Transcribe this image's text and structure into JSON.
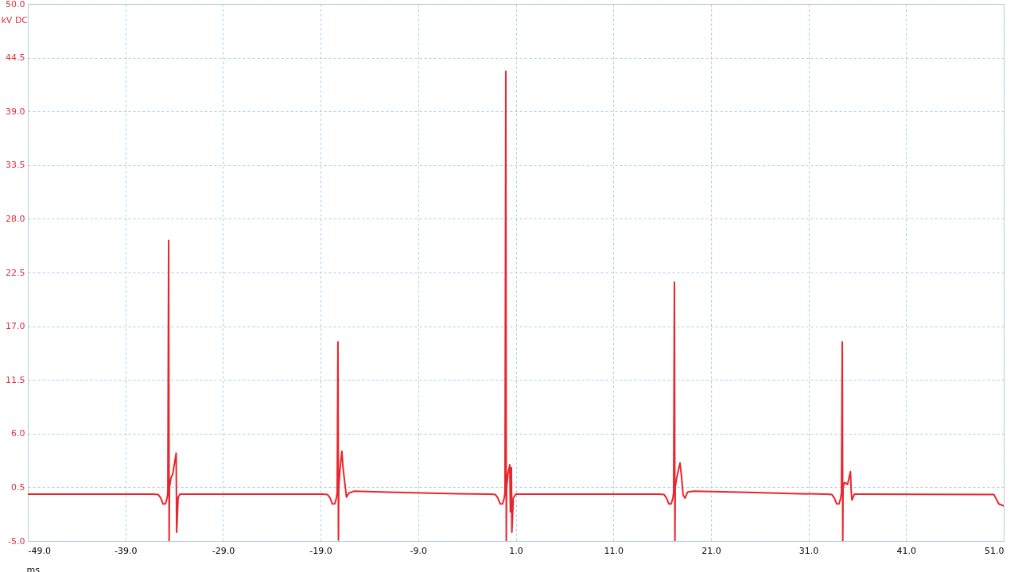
{
  "chart_data": {
    "type": "line",
    "xlabel": "ms",
    "ylabel": "kV DC",
    "grid": true,
    "line_style": "solid",
    "marker": "none",
    "xlim": [
      -49,
      51
    ],
    "ylim": [
      -5,
      50
    ],
    "xticks": [
      {
        "value": -49,
        "label": "-49.0"
      },
      {
        "value": -39,
        "label": "-39.0"
      },
      {
        "value": -29,
        "label": "-29.0"
      },
      {
        "value": -19,
        "label": "-19.0"
      },
      {
        "value": -9,
        "label": "-9.0"
      },
      {
        "value": 1,
        "label": "1.0"
      },
      {
        "value": 11,
        "label": "11.0"
      },
      {
        "value": 21,
        "label": "21.0"
      },
      {
        "value": 31,
        "label": "31.0"
      },
      {
        "value": 41,
        "label": "41.0"
      },
      {
        "value": 51,
        "label": "51.0"
      }
    ],
    "yticks": [
      {
        "value": -5,
        "label": "-5.0"
      },
      0.5,
      {
        "value": 6,
        "label": "6.0"
      },
      11.5,
      {
        "value": 17,
        "label": "17.0"
      },
      22.5,
      {
        "value": 28,
        "label": "28.0"
      },
      33.5,
      {
        "value": 39,
        "label": "39.0"
      },
      44.5,
      {
        "value": 50,
        "label": "50.0"
      }
    ],
    "x": [
      -49.0,
      -36.2,
      -35.63,
      -35.38,
      -35.14,
      -34.9,
      -34.73,
      -34.65,
      -34.57,
      -34.52,
      -34.49,
      -34.33,
      -34.16,
      -33.8,
      -33.75,
      -33.6,
      -33.4,
      -32.9,
      -18.85,
      -18.28,
      -18.03,
      -17.79,
      -17.55,
      -17.38,
      -17.3,
      -17.22,
      -17.17,
      -17.14,
      -17.0,
      -16.82,
      -16.7,
      -16.5,
      -16.35,
      -16.1,
      -15.6,
      -12.0,
      -5.0,
      -1.6,
      -1.08,
      -0.83,
      -0.59,
      -0.35,
      -0.18,
      -0.1,
      -0.02,
      0.03,
      0.06,
      0.22,
      0.39,
      0.45,
      0.55,
      0.6,
      0.75,
      1.0,
      1.6,
      15.63,
      16.2,
      16.45,
      16.69,
      16.93,
      17.1,
      17.18,
      17.26,
      17.31,
      17.34,
      17.5,
      17.83,
      18.0,
      18.15,
      18.35,
      18.6,
      19.2,
      24.0,
      30.0,
      32.8,
      33.4,
      33.65,
      33.89,
      34.13,
      34.3,
      34.38,
      34.46,
      34.51,
      34.54,
      34.7,
      35.0,
      35.3,
      35.38,
      35.45,
      35.7,
      36.5,
      50.0,
      50.5,
      51.0
    ],
    "series": [
      {
        "color": "#e8262d",
        "values": [
          -0.2,
          -0.2,
          -0.25,
          -0.6,
          -1.2,
          -1.2,
          -0.6,
          0.0,
          25.8,
          -5.0,
          0.5,
          1.5,
          1.8,
          4.0,
          -4.1,
          -0.5,
          -0.2,
          -0.2,
          -0.2,
          -0.25,
          -0.6,
          -1.2,
          -1.2,
          -0.6,
          0.0,
          15.4,
          -4.9,
          0.5,
          2.5,
          4.2,
          2.5,
          0.8,
          -0.5,
          -0.1,
          0.1,
          0.0,
          -0.15,
          -0.2,
          -0.25,
          -0.6,
          -1.2,
          -1.2,
          -0.6,
          0.0,
          43.1,
          -5.0,
          0.5,
          2.0,
          2.8,
          -2.0,
          2.5,
          -4.1,
          -0.6,
          -0.2,
          -0.2,
          -0.2,
          -0.25,
          -0.6,
          -1.2,
          -1.2,
          -0.6,
          0.0,
          21.5,
          -5.0,
          0.5,
          1.5,
          3.0,
          1.5,
          -0.3,
          -0.6,
          0.0,
          0.1,
          0.0,
          -0.15,
          -0.2,
          -0.25,
          -0.6,
          -1.2,
          -1.2,
          -0.6,
          0.0,
          15.4,
          -5.0,
          0.5,
          1.0,
          0.8,
          2.1,
          0.0,
          -0.8,
          -0.2,
          -0.2,
          -0.25,
          -1.2,
          -1.4
        ]
      }
    ]
  }
}
